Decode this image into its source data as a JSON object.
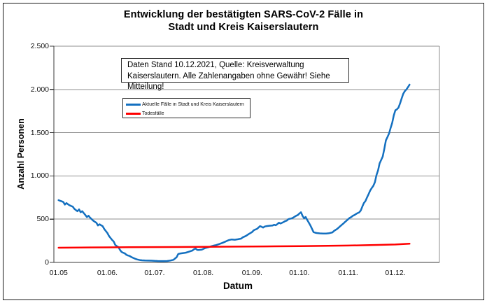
{
  "chart": {
    "title_lines": [
      "Entwicklung der bestätigten SARS-CoV-2 Fälle in",
      "Stadt und Kreis Kaiserslautern"
    ],
    "annotation_lines": [
      "Daten Stand 10.12.2021, Quelle: Kreisverwaltung",
      "Kaiserslautern. Alle Zahlenangaben ohne Gewähr! Siehe Mitteilung!"
    ]
  },
  "chart_data": {
    "type": "line",
    "title": "Entwicklung der bestätigten SARS-CoV-2 Fälle in Stadt und Kreis Kaiserslautern",
    "xlabel": "Datum",
    "ylabel": "Anzahl Personen",
    "ylim": [
      0,
      2500
    ],
    "x_domain": [
      "28.04",
      "29.12"
    ],
    "grid": "horizontal",
    "grid_color": "#8f8f8f",
    "axis_color": "#3a3a3a",
    "legend_position": "inside-top-left",
    "y_ticks": [
      {
        "label": "0",
        "value": 0
      },
      {
        "label": "500",
        "value": 500
      },
      {
        "label": "1.000",
        "value": 1000
      },
      {
        "label": "1.500",
        "value": 1500
      },
      {
        "label": "2.000",
        "value": 2000
      },
      {
        "label": "2.500",
        "value": 2500
      }
    ],
    "x_ticks": [
      {
        "label": "01.05",
        "date": "01.05"
      },
      {
        "label": "01.06.",
        "date": "01.06"
      },
      {
        "label": "01.07.",
        "date": "01.07"
      },
      {
        "label": "01.08.",
        "date": "01.08"
      },
      {
        "label": "01.09.",
        "date": "01.09"
      },
      {
        "label": "01.10.",
        "date": "01.10"
      },
      {
        "label": "01.11.",
        "date": "01.11"
      },
      {
        "label": "01.12.",
        "date": "01.12"
      }
    ],
    "series": [
      {
        "name": "Aktuelle Fälle in Stadt und Kreis Kaiserslautern",
        "color": "#1470c0",
        "points": [
          [
            "01.05",
            720
          ],
          [
            "02.05",
            712
          ],
          [
            "03.05",
            706
          ],
          [
            "04.05",
            698
          ],
          [
            "05.05",
            668
          ],
          [
            "06.05",
            686
          ],
          [
            "07.05",
            672
          ],
          [
            "08.05",
            660
          ],
          [
            "09.05",
            652
          ],
          [
            "10.05",
            645
          ],
          [
            "11.05",
            620
          ],
          [
            "12.05",
            604
          ],
          [
            "13.05",
            592
          ],
          [
            "14.05",
            613
          ],
          [
            "15.05",
            580
          ],
          [
            "16.05",
            592
          ],
          [
            "17.05",
            570
          ],
          [
            "18.05",
            548
          ],
          [
            "19.05",
            524
          ],
          [
            "20.05",
            540
          ],
          [
            "21.05",
            518
          ],
          [
            "22.05",
            500
          ],
          [
            "23.05",
            483
          ],
          [
            "24.05",
            470
          ],
          [
            "25.05",
            459
          ],
          [
            "26.05",
            427
          ],
          [
            "27.05",
            441
          ],
          [
            "28.05",
            430
          ],
          [
            "29.05",
            419
          ],
          [
            "30.05",
            387
          ],
          [
            "31.05",
            363
          ],
          [
            "01.06",
            340
          ],
          [
            "02.06",
            306
          ],
          [
            "03.06",
            282
          ],
          [
            "04.06",
            260
          ],
          [
            "05.06",
            242
          ],
          [
            "06.06",
            202
          ],
          [
            "07.06",
            188
          ],
          [
            "08.06",
            177
          ],
          [
            "09.06",
            145
          ],
          [
            "10.06",
            121
          ],
          [
            "11.06",
            112
          ],
          [
            "12.06",
            105
          ],
          [
            "13.06",
            89
          ],
          [
            "14.06",
            80
          ],
          [
            "15.06",
            75
          ],
          [
            "16.06",
            65
          ],
          [
            "17.06",
            56
          ],
          [
            "18.06",
            48
          ],
          [
            "19.06",
            40
          ],
          [
            "20.06",
            34
          ],
          [
            "21.06",
            30
          ],
          [
            "22.06",
            26
          ],
          [
            "23.06",
            24
          ],
          [
            "25.06",
            22
          ],
          [
            "27.06",
            21
          ],
          [
            "29.06",
            20
          ],
          [
            "01.07",
            18
          ],
          [
            "03.07",
            16
          ],
          [
            "05.07",
            15
          ],
          [
            "07.07",
            15
          ],
          [
            "09.07",
            16
          ],
          [
            "11.07",
            22
          ],
          [
            "13.07",
            30
          ],
          [
            "14.07",
            45
          ],
          [
            "15.07",
            60
          ],
          [
            "16.07",
            97
          ],
          [
            "17.07",
            102
          ],
          [
            "18.07",
            105
          ],
          [
            "20.07",
            110
          ],
          [
            "21.07",
            113
          ],
          [
            "23.07",
            125
          ],
          [
            "25.07",
            137
          ],
          [
            "26.07",
            152
          ],
          [
            "27.07",
            161
          ],
          [
            "28.07",
            145
          ],
          [
            "29.07",
            143
          ],
          [
            "31.07",
            148
          ],
          [
            "02.08",
            165
          ],
          [
            "04.08",
            175
          ],
          [
            "06.08",
            186
          ],
          [
            "08.08",
            197
          ],
          [
            "09.08",
            200
          ],
          [
            "11.08",
            212
          ],
          [
            "13.08",
            225
          ],
          [
            "15.08",
            240
          ],
          [
            "17.08",
            257
          ],
          [
            "19.08",
            265
          ],
          [
            "21.08",
            262
          ],
          [
            "23.08",
            268
          ],
          [
            "25.08",
            275
          ],
          [
            "26.08",
            290
          ],
          [
            "28.08",
            306
          ],
          [
            "30.08",
            330
          ],
          [
            "31.08",
            341
          ],
          [
            "01.09",
            352
          ],
          [
            "02.09",
            371
          ],
          [
            "03.09",
            380
          ],
          [
            "04.09",
            387
          ],
          [
            "05.09",
            403
          ],
          [
            "06.09",
            419
          ],
          [
            "07.09",
            412
          ],
          [
            "08.09",
            403
          ],
          [
            "09.09",
            415
          ],
          [
            "10.09",
            419
          ],
          [
            "12.09",
            424
          ],
          [
            "14.09",
            427
          ],
          [
            "15.09",
            435
          ],
          [
            "16.09",
            430
          ],
          [
            "17.09",
            443
          ],
          [
            "18.09",
            459
          ],
          [
            "19.09",
            450
          ],
          [
            "20.09",
            458
          ],
          [
            "21.09",
            467
          ],
          [
            "22.09",
            478
          ],
          [
            "23.09",
            483
          ],
          [
            "24.09",
            500
          ],
          [
            "25.09",
            505
          ],
          [
            "26.09",
            508
          ],
          [
            "27.09",
            516
          ],
          [
            "28.09",
            528
          ],
          [
            "29.09",
            540
          ],
          [
            "30.09",
            548
          ],
          [
            "01.10",
            565
          ],
          [
            "02.10",
            580
          ],
          [
            "03.10",
            540
          ],
          [
            "04.10",
            510
          ],
          [
            "05.10",
            525
          ],
          [
            "06.10",
            490
          ],
          [
            "07.10",
            460
          ],
          [
            "08.10",
            427
          ],
          [
            "09.10",
            390
          ],
          [
            "10.10",
            350
          ],
          [
            "11.10",
            344
          ],
          [
            "12.10",
            340
          ],
          [
            "14.10",
            336
          ],
          [
            "16.10",
            334
          ],
          [
            "18.10",
            334
          ],
          [
            "20.10",
            338
          ],
          [
            "22.10",
            347
          ],
          [
            "23.10",
            363
          ],
          [
            "24.10",
            375
          ],
          [
            "25.10",
            387
          ],
          [
            "26.10",
            403
          ],
          [
            "27.10",
            419
          ],
          [
            "28.10",
            435
          ],
          [
            "29.10",
            450
          ],
          [
            "30.10",
            468
          ],
          [
            "31.10",
            483
          ],
          [
            "01.11",
            500
          ],
          [
            "02.11",
            515
          ],
          [
            "03.11",
            525
          ],
          [
            "04.11",
            540
          ],
          [
            "05.11",
            548
          ],
          [
            "06.11",
            560
          ],
          [
            "07.11",
            570
          ],
          [
            "08.11",
            578
          ],
          [
            "09.11",
            600
          ],
          [
            "10.11",
            645
          ],
          [
            "11.11",
            685
          ],
          [
            "12.11",
            710
          ],
          [
            "13.11",
            750
          ],
          [
            "14.11",
            790
          ],
          [
            "15.11",
            830
          ],
          [
            "16.11",
            860
          ],
          [
            "17.11",
            885
          ],
          [
            "18.11",
            927
          ],
          [
            "19.11",
            1008
          ],
          [
            "20.11",
            1064
          ],
          [
            "21.11",
            1145
          ],
          [
            "22.11",
            1185
          ],
          [
            "23.11",
            1225
          ],
          [
            "24.11",
            1315
          ],
          [
            "25.11",
            1411
          ],
          [
            "26.11",
            1450
          ],
          [
            "27.11",
            1490
          ],
          [
            "28.11",
            1556
          ],
          [
            "29.11",
            1613
          ],
          [
            "30.11",
            1700
          ],
          [
            "01.12",
            1758
          ],
          [
            "02.12",
            1770
          ],
          [
            "03.12",
            1790
          ],
          [
            "04.12",
            1840
          ],
          [
            "05.12",
            1895
          ],
          [
            "06.12",
            1950
          ],
          [
            "07.12",
            1980
          ],
          [
            "08.12",
            2000
          ],
          [
            "09.12",
            2025
          ],
          [
            "10.12",
            2055
          ]
        ]
      },
      {
        "name": "Todesfälle",
        "color": "#ff0000",
        "points": [
          [
            "01.05",
            170
          ],
          [
            "15.05",
            172
          ],
          [
            "01.06",
            174
          ],
          [
            "15.06",
            176
          ],
          [
            "01.07",
            177
          ],
          [
            "15.07",
            178
          ],
          [
            "01.08",
            180
          ],
          [
            "15.08",
            182
          ],
          [
            "01.09",
            184
          ],
          [
            "15.09",
            186
          ],
          [
            "01.10",
            188
          ],
          [
            "15.10",
            191
          ],
          [
            "01.11",
            195
          ],
          [
            "10.11",
            198
          ],
          [
            "20.11",
            202
          ],
          [
            "01.12",
            207
          ],
          [
            "05.12",
            211
          ],
          [
            "10.12",
            216
          ]
        ]
      }
    ]
  }
}
